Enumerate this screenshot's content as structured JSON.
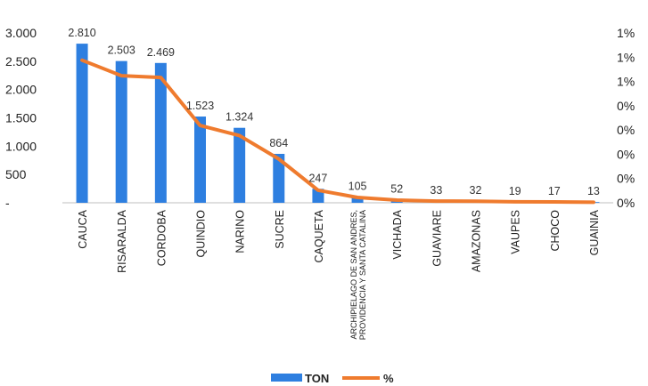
{
  "chart_data": {
    "type": "bar",
    "categories": [
      "CAUCA",
      "RISARALDA",
      "CORDOBA",
      "QUINDIO",
      "NARINO",
      "SUCRE",
      "CAQUETA",
      "ARCHIPIELAGO DE SAN ANDRES, PROVIDENCIA Y SANTA CATALINA",
      "VICHADA",
      "GUAVIARE",
      "AMAZONAS",
      "VAUPES",
      "CHOCO",
      "GUAINIA"
    ],
    "series": [
      {
        "name": "TON",
        "kind": "bar",
        "axis": "left",
        "color": "#2e7fe0",
        "values": [
          2810,
          2503,
          2469,
          1523,
          1324,
          864,
          247,
          105,
          52,
          33,
          32,
          19,
          17,
          13
        ],
        "labels": [
          "2.810",
          "2.503",
          "2.469",
          "1.523",
          "1.324",
          "864",
          "247",
          "105",
          "52",
          "33",
          "32",
          "19",
          "17",
          "13"
        ]
      },
      {
        "name": "%",
        "kind": "line",
        "axis": "right",
        "color": "#ef7b2e",
        "values": [
          0.01175,
          0.01047,
          0.01033,
          0.00637,
          0.00554,
          0.00361,
          0.00103,
          0.00044,
          0.00022,
          0.00014,
          0.00013,
          8e-05,
          7e-05,
          5e-05
        ]
      }
    ],
    "left_axis": {
      "ylim": [
        0,
        3000
      ],
      "ticks": [
        0,
        500,
        1000,
        1500,
        2000,
        2500,
        3000
      ],
      "tick_labels": [
        "-",
        "500",
        "1.000",
        "1.500",
        "2.000",
        "2.500",
        "3.000"
      ]
    },
    "right_axis": {
      "ylim": [
        0,
        0.014
      ],
      "ticks": [
        0,
        0.002,
        0.004,
        0.006,
        0.008,
        0.01,
        0.012,
        0.014
      ],
      "tick_labels": [
        "0%",
        "0%",
        "0%",
        "0%",
        "0%",
        "1%",
        "1%",
        "1%"
      ]
    },
    "legend": {
      "position": "bottom",
      "entries": [
        "TON",
        "%"
      ]
    },
    "grid": false
  }
}
